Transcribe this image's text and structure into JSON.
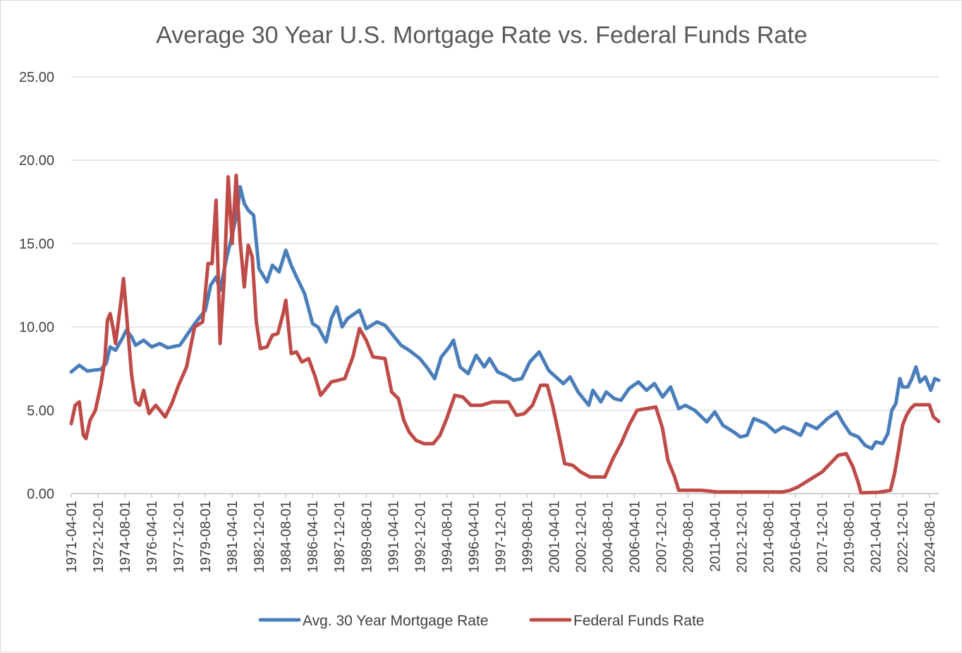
{
  "chart_data": {
    "type": "line",
    "title": "Average 30 Year U.S. Mortgage Rate vs. Federal Funds Rate",
    "xlabel": "",
    "ylabel": "",
    "ylim": [
      0,
      25
    ],
    "y_ticks": [
      "0.00",
      "5.00",
      "10.00",
      "15.00",
      "20.00",
      "25.00"
    ],
    "x_range": [
      "1971-04-01",
      "2025-03-01"
    ],
    "x_ticks": [
      "1971-04-01",
      "1972-12-01",
      "1974-08-01",
      "1976-04-01",
      "1977-12-01",
      "1979-08-01",
      "1981-04-01",
      "1982-12-01",
      "1984-08-01",
      "1986-04-01",
      "1987-12-01",
      "1989-08-01",
      "1991-04-01",
      "1992-12-01",
      "1994-08-01",
      "1996-04-01",
      "1997-12-01",
      "1999-08-01",
      "2001-04-01",
      "2002-12-01",
      "2004-08-01",
      "2006-04-01",
      "2007-12-01",
      "2009-08-01",
      "2011-04-01",
      "2012-12-01",
      "2014-08-01",
      "2016-04-01",
      "2017-12-01",
      "2019-08-01",
      "2021-04-01",
      "2022-12-01",
      "2024-08-01"
    ],
    "grid": true,
    "legend_position": "bottom",
    "series": [
      {
        "name": "Avg. 30 Year Mortgage Rate",
        "color": "#4a7ebb",
        "points": [
          [
            "1971-04-01",
            7.3
          ],
          [
            "1971-10-01",
            7.7
          ],
          [
            "1972-04-01",
            7.35
          ],
          [
            "1972-08-01",
            7.4
          ],
          [
            "1973-02-01",
            7.45
          ],
          [
            "1973-06-01",
            7.8
          ],
          [
            "1973-09-01",
            8.8
          ],
          [
            "1974-01-01",
            8.6
          ],
          [
            "1974-06-01",
            9.3
          ],
          [
            "1974-09-01",
            9.8
          ],
          [
            "1975-01-01",
            9.4
          ],
          [
            "1975-04-01",
            8.9
          ],
          [
            "1975-10-01",
            9.2
          ],
          [
            "1976-04-01",
            8.8
          ],
          [
            "1976-10-01",
            9.0
          ],
          [
            "1977-04-01",
            8.75
          ],
          [
            "1978-01-01",
            8.9
          ],
          [
            "1978-07-01",
            9.6
          ],
          [
            "1979-01-01",
            10.3
          ],
          [
            "1979-08-01",
            11.0
          ],
          [
            "1979-12-01",
            12.5
          ],
          [
            "1980-04-01",
            13.0
          ],
          [
            "1980-07-01",
            12.2
          ],
          [
            "1980-12-01",
            14.2
          ],
          [
            "1981-04-01",
            15.5
          ],
          [
            "1981-08-01",
            17.0
          ],
          [
            "1981-10-01",
            18.4
          ],
          [
            "1982-01-01",
            17.4
          ],
          [
            "1982-04-01",
            17.0
          ],
          [
            "1982-08-01",
            16.7
          ],
          [
            "1982-12-01",
            13.5
          ],
          [
            "1983-06-01",
            12.7
          ],
          [
            "1983-10-01",
            13.7
          ],
          [
            "1984-03-01",
            13.3
          ],
          [
            "1984-08-01",
            14.6
          ],
          [
            "1984-12-01",
            13.7
          ],
          [
            "1985-04-01",
            13.0
          ],
          [
            "1985-10-01",
            12.0
          ],
          [
            "1986-04-01",
            10.2
          ],
          [
            "1986-08-01",
            10.0
          ],
          [
            "1987-02-01",
            9.1
          ],
          [
            "1987-06-01",
            10.5
          ],
          [
            "1987-10-01",
            11.2
          ],
          [
            "1988-02-01",
            10.0
          ],
          [
            "1988-06-01",
            10.5
          ],
          [
            "1989-03-01",
            11.0
          ],
          [
            "1989-08-01",
            9.9
          ],
          [
            "1990-04-01",
            10.3
          ],
          [
            "1990-10-01",
            10.1
          ],
          [
            "1991-04-01",
            9.5
          ],
          [
            "1991-10-01",
            8.9
          ],
          [
            "1992-04-01",
            8.6
          ],
          [
            "1992-12-01",
            8.1
          ],
          [
            "1993-06-01",
            7.5
          ],
          [
            "1993-11-01",
            6.9
          ],
          [
            "1994-04-01",
            8.2
          ],
          [
            "1994-10-01",
            8.8
          ],
          [
            "1995-01-01",
            9.2
          ],
          [
            "1995-06-01",
            7.6
          ],
          [
            "1995-12-01",
            7.2
          ],
          [
            "1996-06-01",
            8.3
          ],
          [
            "1996-12-01",
            7.6
          ],
          [
            "1997-04-01",
            8.1
          ],
          [
            "1997-10-01",
            7.3
          ],
          [
            "1998-04-01",
            7.1
          ],
          [
            "1998-10-01",
            6.8
          ],
          [
            "1999-04-01",
            6.9
          ],
          [
            "1999-10-01",
            7.9
          ],
          [
            "2000-05-01",
            8.5
          ],
          [
            "2000-12-01",
            7.4
          ],
          [
            "2001-04-01",
            7.1
          ],
          [
            "2001-11-01",
            6.6
          ],
          [
            "2002-04-01",
            7.0
          ],
          [
            "2002-10-01",
            6.1
          ],
          [
            "2003-06-01",
            5.3
          ],
          [
            "2003-09-01",
            6.2
          ],
          [
            "2004-03-01",
            5.5
          ],
          [
            "2004-07-01",
            6.1
          ],
          [
            "2005-01-01",
            5.7
          ],
          [
            "2005-06-01",
            5.6
          ],
          [
            "2005-12-01",
            6.3
          ],
          [
            "2006-07-01",
            6.7
          ],
          [
            "2007-01-01",
            6.2
          ],
          [
            "2007-07-01",
            6.6
          ],
          [
            "2008-01-01",
            5.8
          ],
          [
            "2008-07-01",
            6.4
          ],
          [
            "2009-01-01",
            5.1
          ],
          [
            "2009-06-01",
            5.3
          ],
          [
            "2010-01-01",
            5.0
          ],
          [
            "2010-10-01",
            4.3
          ],
          [
            "2011-04-01",
            4.9
          ],
          [
            "2011-10-01",
            4.1
          ],
          [
            "2012-06-01",
            3.7
          ],
          [
            "2012-11-01",
            3.4
          ],
          [
            "2013-04-01",
            3.5
          ],
          [
            "2013-09-01",
            4.5
          ],
          [
            "2014-06-01",
            4.2
          ],
          [
            "2015-01-01",
            3.7
          ],
          [
            "2015-07-01",
            4.0
          ],
          [
            "2016-01-01",
            3.8
          ],
          [
            "2016-08-01",
            3.5
          ],
          [
            "2016-12-01",
            4.2
          ],
          [
            "2017-08-01",
            3.9
          ],
          [
            "2018-04-01",
            4.5
          ],
          [
            "2018-11-01",
            4.9
          ],
          [
            "2019-04-01",
            4.2
          ],
          [
            "2019-09-01",
            3.6
          ],
          [
            "2020-03-01",
            3.4
          ],
          [
            "2020-08-01",
            2.9
          ],
          [
            "2021-01-01",
            2.7
          ],
          [
            "2021-04-01",
            3.1
          ],
          [
            "2021-09-01",
            3.0
          ],
          [
            "2022-01-01",
            3.6
          ],
          [
            "2022-04-01",
            5.0
          ],
          [
            "2022-07-01",
            5.4
          ],
          [
            "2022-10-01",
            6.9
          ],
          [
            "2022-12-01",
            6.4
          ],
          [
            "2023-04-01",
            6.4
          ],
          [
            "2023-07-01",
            6.9
          ],
          [
            "2023-10-01",
            7.6
          ],
          [
            "2024-01-01",
            6.7
          ],
          [
            "2024-05-01",
            7.0
          ],
          [
            "2024-09-01",
            6.2
          ],
          [
            "2024-12-01",
            6.9
          ],
          [
            "2025-03-01",
            6.8
          ]
        ]
      },
      {
        "name": "Federal Funds Rate",
        "color": "#be4b48",
        "points": [
          [
            "1971-04-01",
            4.2
          ],
          [
            "1971-07-01",
            5.3
          ],
          [
            "1971-10-01",
            5.5
          ],
          [
            "1972-01-01",
            3.5
          ],
          [
            "1972-03-01",
            3.3
          ],
          [
            "1972-06-01",
            4.4
          ],
          [
            "1972-10-01",
            5.0
          ],
          [
            "1973-02-01",
            6.5
          ],
          [
            "1973-05-01",
            8.0
          ],
          [
            "1973-07-01",
            10.4
          ],
          [
            "1973-09-01",
            10.8
          ],
          [
            "1973-11-01",
            10.0
          ],
          [
            "1974-01-01",
            9.0
          ],
          [
            "1974-05-01",
            11.5
          ],
          [
            "1974-07-01",
            12.9
          ],
          [
            "1974-10-01",
            10.0
          ],
          [
            "1975-01-01",
            7.1
          ],
          [
            "1975-04-01",
            5.5
          ],
          [
            "1975-07-01",
            5.3
          ],
          [
            "1975-10-01",
            6.2
          ],
          [
            "1976-02-01",
            4.8
          ],
          [
            "1976-07-01",
            5.3
          ],
          [
            "1977-02-01",
            4.6
          ],
          [
            "1977-07-01",
            5.4
          ],
          [
            "1977-12-01",
            6.5
          ],
          [
            "1978-06-01",
            7.6
          ],
          [
            "1978-12-01",
            10.0
          ],
          [
            "1979-06-01",
            10.3
          ],
          [
            "1979-10-01",
            13.8
          ],
          [
            "1980-01-01",
            13.8
          ],
          [
            "1980-04-01",
            17.6
          ],
          [
            "1980-07-01",
            9.0
          ],
          [
            "1980-10-01",
            12.8
          ],
          [
            "1981-01-01",
            19.0
          ],
          [
            "1981-04-01",
            15.0
          ],
          [
            "1981-07-01",
            19.1
          ],
          [
            "1981-10-01",
            15.1
          ],
          [
            "1982-01-01",
            12.4
          ],
          [
            "1982-04-01",
            14.9
          ],
          [
            "1982-07-01",
            14.2
          ],
          [
            "1982-10-01",
            10.3
          ],
          [
            "1983-01-01",
            8.7
          ],
          [
            "1983-06-01",
            8.8
          ],
          [
            "1983-10-01",
            9.5
          ],
          [
            "1984-02-01",
            9.6
          ],
          [
            "1984-06-01",
            10.8
          ],
          [
            "1984-08-01",
            11.6
          ],
          [
            "1984-12-01",
            8.4
          ],
          [
            "1985-04-01",
            8.5
          ],
          [
            "1985-08-01",
            7.9
          ],
          [
            "1986-01-01",
            8.1
          ],
          [
            "1986-06-01",
            7.0
          ],
          [
            "1986-10-01",
            5.9
          ],
          [
            "1987-02-01",
            6.3
          ],
          [
            "1987-06-01",
            6.7
          ],
          [
            "1987-11-01",
            6.8
          ],
          [
            "1988-04-01",
            6.9
          ],
          [
            "1988-10-01",
            8.2
          ],
          [
            "1989-03-01",
            9.9
          ],
          [
            "1989-08-01",
            9.2
          ],
          [
            "1990-01-01",
            8.2
          ],
          [
            "1990-10-01",
            8.1
          ],
          [
            "1991-03-01",
            6.1
          ],
          [
            "1991-08-01",
            5.7
          ],
          [
            "1991-12-01",
            4.4
          ],
          [
            "1992-04-01",
            3.7
          ],
          [
            "1992-09-01",
            3.2
          ],
          [
            "1993-03-01",
            3.0
          ],
          [
            "1993-10-01",
            3.0
          ],
          [
            "1994-03-01",
            3.5
          ],
          [
            "1994-08-01",
            4.5
          ],
          [
            "1995-02-01",
            5.9
          ],
          [
            "1995-08-01",
            5.8
          ],
          [
            "1996-02-01",
            5.3
          ],
          [
            "1996-10-01",
            5.3
          ],
          [
            "1997-06-01",
            5.5
          ],
          [
            "1998-06-01",
            5.5
          ],
          [
            "1998-12-01",
            4.7
          ],
          [
            "1999-06-01",
            4.8
          ],
          [
            "1999-12-01",
            5.3
          ],
          [
            "2000-06-01",
            6.5
          ],
          [
            "2000-11-01",
            6.5
          ],
          [
            "2001-03-01",
            5.3
          ],
          [
            "2001-07-01",
            3.8
          ],
          [
            "2001-12-01",
            1.8
          ],
          [
            "2002-06-01",
            1.7
          ],
          [
            "2002-12-01",
            1.3
          ],
          [
            "2003-07-01",
            1.0
          ],
          [
            "2004-06-01",
            1.0
          ],
          [
            "2004-12-01",
            2.1
          ],
          [
            "2005-06-01",
            3.0
          ],
          [
            "2005-12-01",
            4.1
          ],
          [
            "2006-06-01",
            5.0
          ],
          [
            "2007-08-01",
            5.2
          ],
          [
            "2008-01-01",
            3.9
          ],
          [
            "2008-05-01",
            2.0
          ],
          [
            "2008-10-01",
            1.0
          ],
          [
            "2009-01-01",
            0.2
          ],
          [
            "2010-06-01",
            0.2
          ],
          [
            "2011-06-01",
            0.1
          ],
          [
            "2013-06-01",
            0.1
          ],
          [
            "2015-06-01",
            0.1
          ],
          [
            "2015-12-01",
            0.2
          ],
          [
            "2016-06-01",
            0.4
          ],
          [
            "2017-06-01",
            1.0
          ],
          [
            "2017-12-01",
            1.3
          ],
          [
            "2018-06-01",
            1.8
          ],
          [
            "2018-12-01",
            2.3
          ],
          [
            "2019-06-01",
            2.4
          ],
          [
            "2019-11-01",
            1.6
          ],
          [
            "2020-03-01",
            0.65
          ],
          [
            "2020-05-01",
            0.05
          ],
          [
            "2021-06-01",
            0.08
          ],
          [
            "2022-03-01",
            0.2
          ],
          [
            "2022-06-01",
            1.2
          ],
          [
            "2022-09-01",
            2.6
          ],
          [
            "2022-12-01",
            4.1
          ],
          [
            "2023-03-01",
            4.7
          ],
          [
            "2023-06-01",
            5.1
          ],
          [
            "2023-09-01",
            5.33
          ],
          [
            "2024-08-01",
            5.33
          ],
          [
            "2024-11-01",
            4.6
          ],
          [
            "2025-03-01",
            4.33
          ]
        ]
      }
    ]
  }
}
